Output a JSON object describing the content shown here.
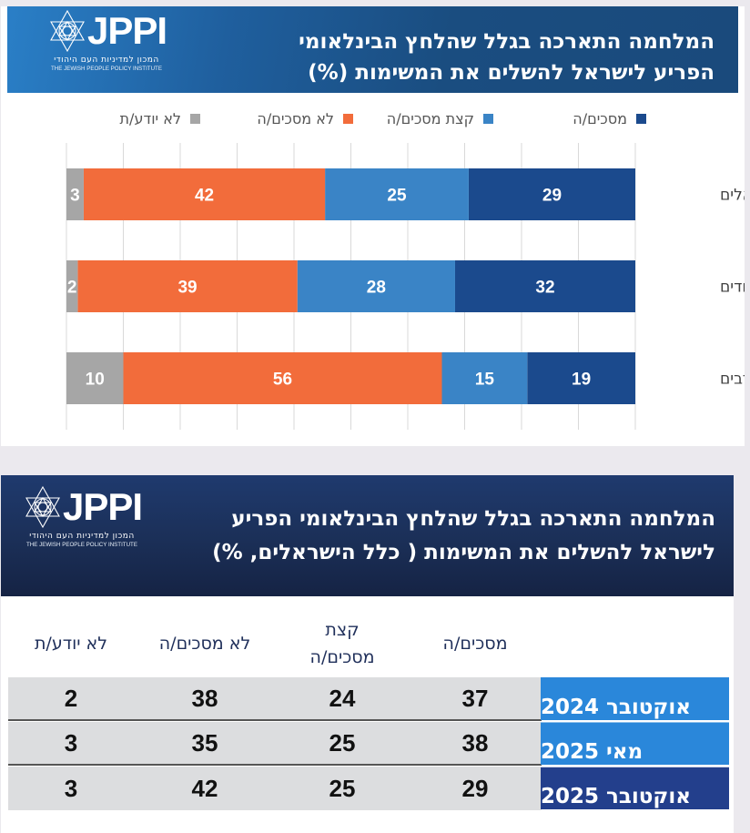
{
  "logo": {
    "name": "JPPI",
    "hebrew_subtitle": "המכון למדיניות העם היהודי",
    "english_subtitle": "THE JEWISH PEOPLE POLICY INSTITUTE"
  },
  "chart_data": {
    "type": "bar",
    "orientation": "horizontal-stacked",
    "title_lines": [
      "המלחמה התארכה בגלל שהלחץ הבינלאומי",
      "הפריע לישראל להשלים את המשימות (%)"
    ],
    "categories": [
      "ישראלים",
      "יהודים",
      "ערבים"
    ],
    "series": [
      {
        "name": "מסכים/ה",
        "color": "#1b4a8d",
        "values": [
          29,
          32,
          19
        ]
      },
      {
        "name": "קצת מסכים/ה",
        "color": "#3a84c6",
        "values": [
          25,
          28,
          15
        ]
      },
      {
        "name": "לא מסכים/ה",
        "color": "#f26c3b",
        "values": [
          42,
          39,
          56
        ]
      },
      {
        "name": "לא יודע/ת",
        "color": "#a6a6a6",
        "values": [
          3,
          2,
          10
        ]
      }
    ],
    "xlim": [
      0,
      100
    ],
    "grid": true,
    "legend_position": "top",
    "xlabel": "",
    "ylabel": ""
  },
  "table": {
    "title_lines": [
      "המלחמה התארכה בגלל שהלחץ הבינלאומי הפריע",
      "לישראל להשלים את המשימות ( כלל הישראלים, %)"
    ],
    "columns": [
      "מסכים/ה",
      "קצת מסכים/ה",
      "לא מסכים/ה",
      "לא יודע/ת"
    ],
    "column_lines": [
      [
        "מסכים/ה"
      ],
      [
        "קצת",
        "מסכים/ה"
      ],
      [
        "לא מסכים/ה"
      ],
      [
        "לא יודע/ת"
      ]
    ],
    "rows": [
      {
        "label": "אוקטובר 2024",
        "label_color": "#2a87da",
        "values": [
          37,
          24,
          38,
          2
        ]
      },
      {
        "label": "מאי 2025",
        "label_color": "#2a87da",
        "values": [
          38,
          25,
          35,
          3
        ]
      },
      {
        "label": "אוקטובר 2025",
        "label_color": "#233f8c",
        "values": [
          29,
          25,
          42,
          3
        ]
      }
    ]
  }
}
